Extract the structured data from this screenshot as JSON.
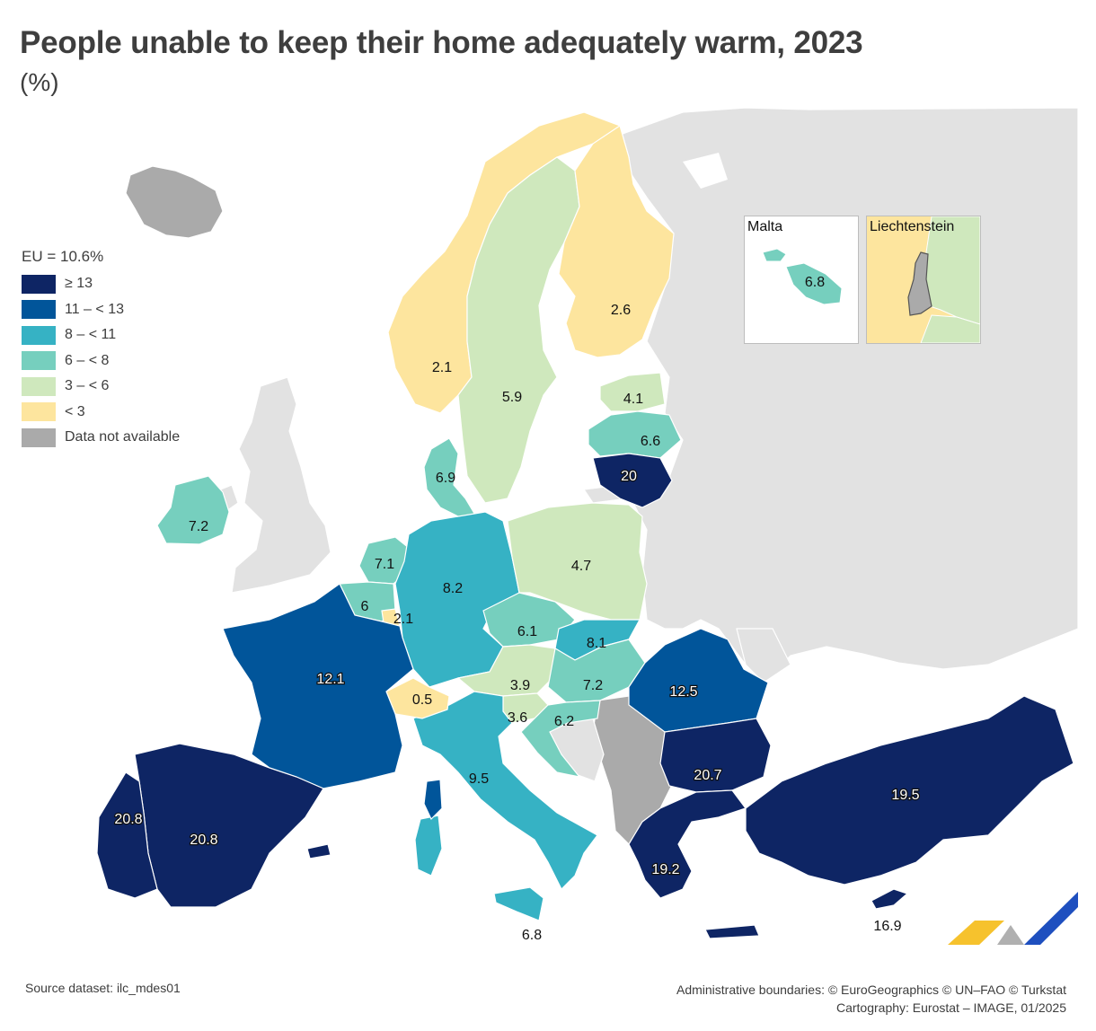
{
  "title": "People unable to keep their home adequately warm, 2023",
  "subtitle": "(%)",
  "legend": {
    "title": "EU = 10.6%",
    "items": [
      {
        "label": "≥ 13",
        "color": "#0e2564"
      },
      {
        "label": "11 – < 13",
        "color": "#01559a"
      },
      {
        "label": "8 – < 11",
        "color": "#36b2c4"
      },
      {
        "label": "6 – < 8",
        "color": "#76cfbe"
      },
      {
        "label": "3 – < 6",
        "color": "#cfe8bd"
      },
      {
        "label": "< 3",
        "color": "#fde59e"
      },
      {
        "label": "Data not available",
        "color": "#aaaaaa"
      }
    ]
  },
  "colors": {
    "background_land": "#e2e2e2",
    "border": "#ffffff",
    "sea": "#ffffff"
  },
  "countries": [
    {
      "name": "Norway",
      "value": "2.1"
    },
    {
      "name": "Sweden",
      "value": "5.9"
    },
    {
      "name": "Finland",
      "value": "2.6"
    },
    {
      "name": "Estonia",
      "value": "4.1"
    },
    {
      "name": "Latvia",
      "value": "6.6"
    },
    {
      "name": "Lithuania",
      "value": "20"
    },
    {
      "name": "Denmark",
      "value": "6.9"
    },
    {
      "name": "Ireland",
      "value": "7.2"
    },
    {
      "name": "Netherlands",
      "value": "7.1"
    },
    {
      "name": "Belgium",
      "value": "6"
    },
    {
      "name": "Luxembourg",
      "value": "2.1"
    },
    {
      "name": "Germany",
      "value": "8.2"
    },
    {
      "name": "Poland",
      "value": "4.7"
    },
    {
      "name": "Czechia",
      "value": "6.1"
    },
    {
      "name": "Slovakia",
      "value": "8.1"
    },
    {
      "name": "Austria",
      "value": "3.9"
    },
    {
      "name": "Hungary",
      "value": "7.2"
    },
    {
      "name": "Slovenia",
      "value": "3.6"
    },
    {
      "name": "Croatia",
      "value": "6.2"
    },
    {
      "name": "Romania",
      "value": "12.5"
    },
    {
      "name": "Bulgaria",
      "value": "20.7"
    },
    {
      "name": "Greece",
      "value": "19.2"
    },
    {
      "name": "Turkey",
      "value": "19.5"
    },
    {
      "name": "Cyprus",
      "value": "16.9"
    },
    {
      "name": "Italy",
      "value": "9.5"
    },
    {
      "name": "Malta",
      "value": "6.8"
    },
    {
      "name": "Switzerland",
      "value": "0.5"
    },
    {
      "name": "France",
      "value": "12.1"
    },
    {
      "name": "Spain",
      "value": "20.8"
    },
    {
      "name": "Portugal",
      "value": "20.8"
    },
    {
      "name": "Italy-Sicily",
      "value": "6.8"
    }
  ],
  "insets": {
    "malta": {
      "title": "Malta",
      "value": "6.8"
    },
    "liechtenstein": {
      "title": "Liechtenstein"
    }
  },
  "footer": {
    "source": "Source dataset: ilc_mdes01",
    "boundaries": "Administrative boundaries: © EuroGeographics © UN–FAO © Turkstat",
    "cartography": "Cartography: Eurostat – IMAGE, 01/2025"
  }
}
